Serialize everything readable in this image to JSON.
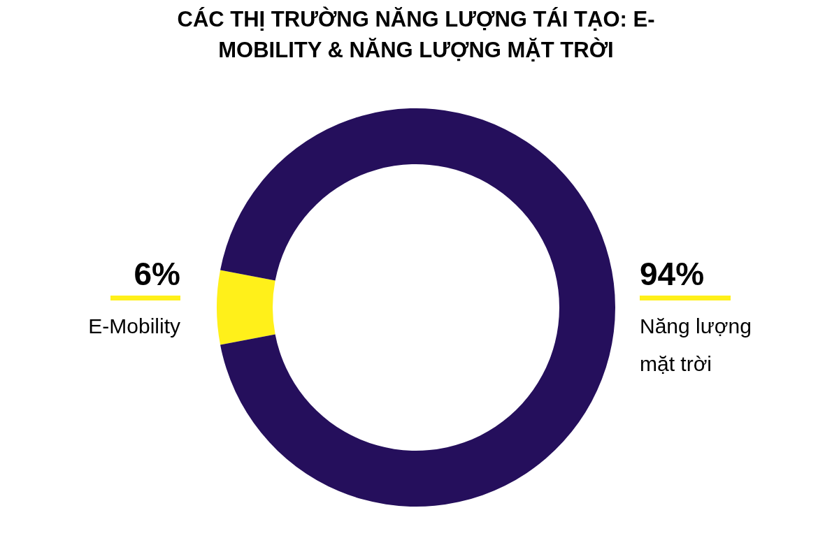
{
  "chart_data": {
    "type": "donut",
    "title": "CÁC THỊ TRƯỜNG NĂNG LƯỢNG TÁI TẠO: E-MOBILITY & NĂNG LƯỢNG MẶT TRỜI",
    "categories": [
      "E-Mobility",
      "Năng lượng mặt trời"
    ],
    "values": [
      6,
      94
    ],
    "colors": [
      "#fff01a",
      "#250f5c"
    ],
    "value_labels": [
      "6%",
      "94%"
    ]
  }
}
